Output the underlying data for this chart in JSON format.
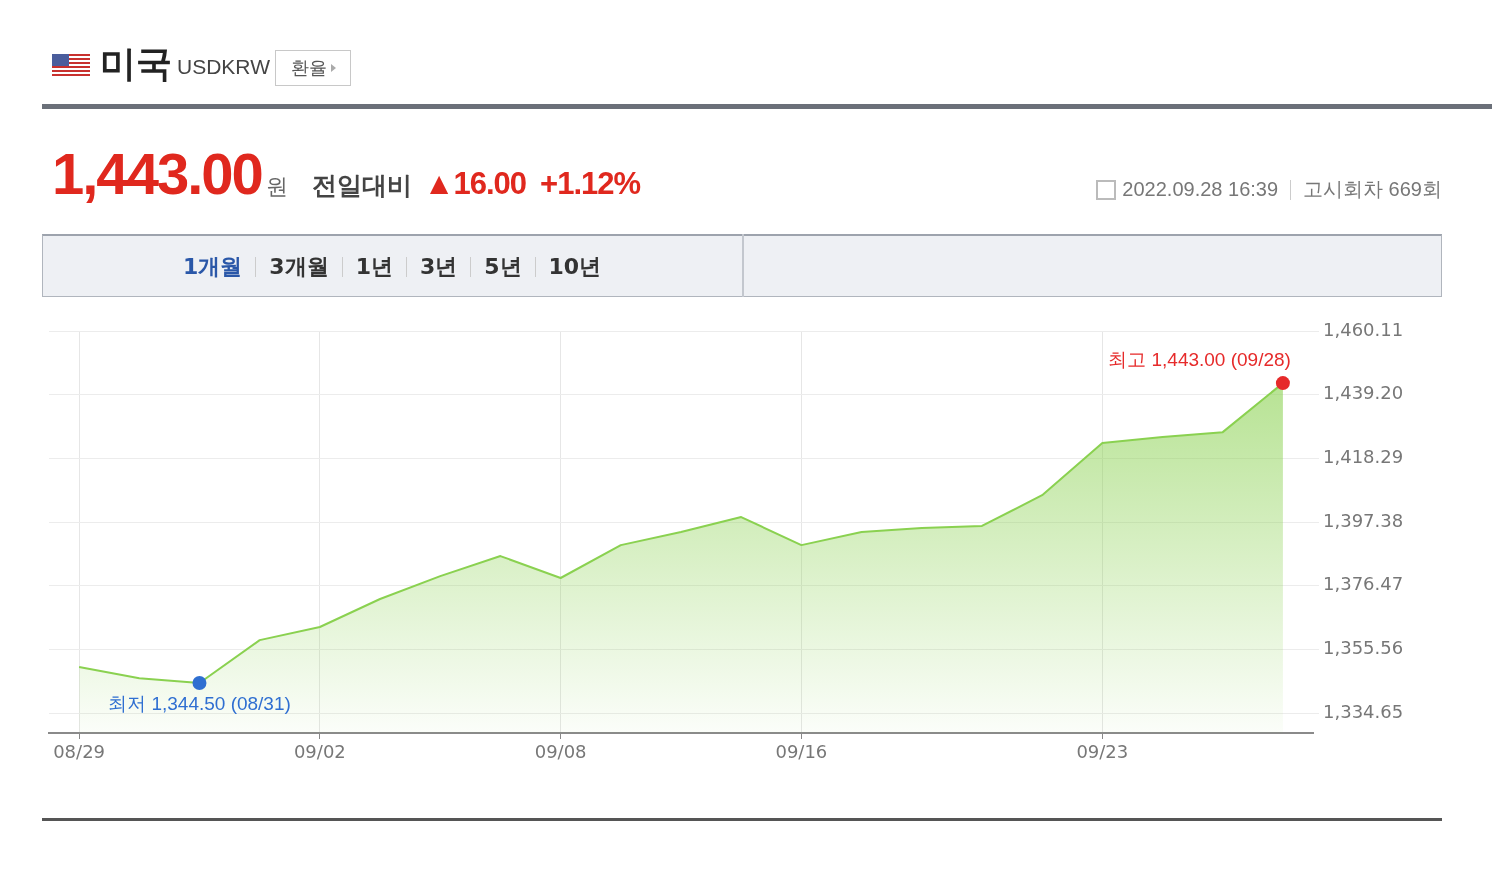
{
  "chart_data": {
    "type": "area",
    "title": "미국",
    "subtitle": "USDKRW",
    "categories": [
      "08/29",
      null,
      null,
      null,
      "09/02",
      null,
      null,
      null,
      "09/08",
      null,
      null,
      null,
      "09/16",
      null,
      null,
      null,
      null,
      "09/23",
      null,
      null,
      null
    ],
    "series": [
      {
        "color": "#8ad150",
        "marker": "none",
        "values": [
          1349.8,
          1346.1,
          1344.5,
          1358.6,
          1362.9,
          1372.1,
          1379.6,
          1386.2,
          1379.0,
          1389.8,
          1394.1,
          1399.0,
          1389.8,
          1394.1,
          1395.4,
          1396.1,
          1406.2,
          1423.3,
          1425.3,
          1426.9,
          1443.0
        ]
      },
      {
        "type": "scatter",
        "color": "#e62a2a",
        "marker": "circle",
        "values": [
          null,
          null,
          null,
          null,
          null,
          null,
          null,
          null,
          null,
          null,
          null,
          null,
          null,
          null,
          null,
          null,
          null,
          null,
          null,
          null,
          1443.0
        ]
      },
      {
        "type": "scatter",
        "color": "#2f6fd1",
        "marker": "circle",
        "values": [
          null,
          null,
          1344.5,
          null,
          null,
          null,
          null,
          null,
          null,
          null,
          null,
          null,
          null,
          null,
          null,
          null,
          null,
          null,
          null,
          null,
          null
        ]
      }
    ],
    "ylim": [
      1328.1,
      1460.11
    ],
    "yticks": [
      {
        "value": 1334.65,
        "label": "1,334.65"
      },
      {
        "value": 1355.56,
        "label": "1,355.56"
      },
      {
        "value": 1376.47,
        "label": "1,376.47"
      },
      {
        "value": 1397.38,
        "label": "1,397.38"
      },
      {
        "value": 1418.29,
        "label": "1,418.29"
      },
      {
        "value": 1439.2,
        "label": "1,439.20"
      },
      {
        "value": 1460.11,
        "label": "1,460.11"
      }
    ],
    "grid": true,
    "annotations": [
      "환율",
      "1,443.00",
      "원",
      "전일대비",
      "▲16.00",
      "+1.12%",
      "2022.09.28 16:39",
      "고시회차 669회",
      "1개월",
      "3개월",
      "1년",
      "3년",
      "5년",
      "10년",
      "최고 1,443.00 (09/28)",
      "최저 1,344.50 (08/31)"
    ]
  }
}
